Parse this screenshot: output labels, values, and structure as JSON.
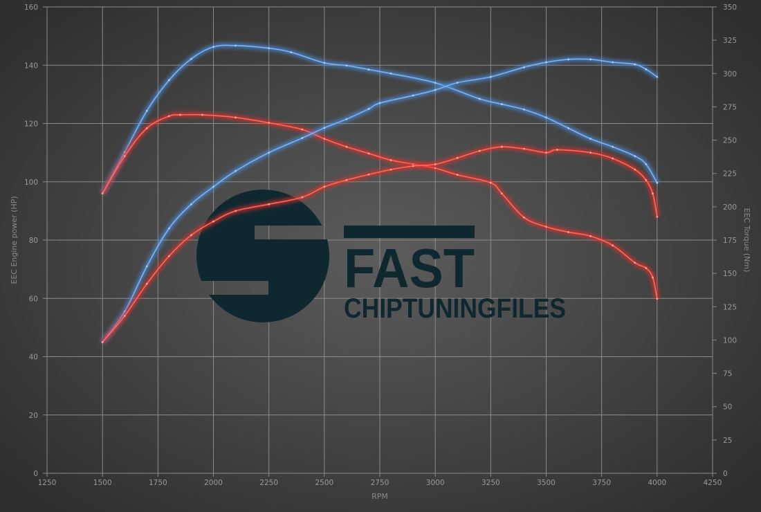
{
  "chart_data": {
    "type": "line",
    "xlabel": "RPM",
    "ylabel_left": "EEC Engine power (HP)",
    "ylabel_right": "EEC Torque (Nm)",
    "xlim": [
      1250,
      4250
    ],
    "xticks": [
      1250,
      1500,
      1750,
      2000,
      2250,
      2500,
      2750,
      3000,
      3250,
      3500,
      3750,
      4000,
      4250
    ],
    "ylim_left": [
      0,
      160
    ],
    "yticks_left": [
      0,
      20,
      40,
      60,
      80,
      100,
      120,
      140,
      160
    ],
    "ylim_right": [
      0,
      350
    ],
    "yticks_right": [
      0,
      25,
      50,
      75,
      100,
      125,
      150,
      175,
      200,
      225,
      250,
      275,
      300,
      325,
      350
    ],
    "grid": true,
    "watermark": {
      "brand_top": "FAST",
      "brand_bottom": "CHIPTUNINGFILES",
      "color": "#0f2830"
    },
    "series": [
      {
        "axis": "right",
        "quantity": "torque",
        "color": "#4a90e2",
        "x": [
          1500,
          1600,
          1700,
          1800,
          1900,
          2000,
          2100,
          2250,
          2350,
          2500,
          2600,
          2700,
          2800,
          3000,
          3200,
          3300,
          3400,
          3500,
          3600,
          3700,
          3800,
          3900,
          3950,
          4000
        ],
        "y": [
          210,
          241,
          272,
          295,
          311,
          320,
          321,
          319,
          316,
          308,
          306,
          303,
          300,
          293,
          281,
          277,
          273,
          267,
          259,
          251,
          245,
          238,
          232,
          218
        ]
      },
      {
        "axis": "right",
        "quantity": "torque",
        "color": "#e8302a",
        "x": [
          1500,
          1600,
          1700,
          1800,
          1850,
          1950,
          2100,
          2250,
          2400,
          2500,
          2600,
          2700,
          2800,
          2900,
          3000,
          3100,
          3250,
          3300,
          3400,
          3500,
          3600,
          3700,
          3800,
          3900,
          3950,
          3980,
          4000
        ],
        "y": [
          210,
          238,
          259,
          268,
          269,
          269,
          267,
          263,
          258,
          251,
          245,
          240,
          235,
          232,
          229,
          224,
          218,
          210,
          192,
          185,
          181,
          178,
          171,
          158,
          154,
          147,
          131
        ]
      },
      {
        "axis": "left",
        "quantity": "power",
        "color": "#4a90e2",
        "x": [
          1500,
          1600,
          1700,
          1800,
          1900,
          2000,
          2100,
          2250,
          2400,
          2500,
          2600,
          2700,
          2750,
          2900,
          3000,
          3100,
          3250,
          3400,
          3500,
          3600,
          3700,
          3800,
          3900,
          3950,
          4000
        ],
        "y": [
          45,
          55.5,
          71,
          84,
          92.3,
          98.3,
          103.7,
          110,
          115,
          118.5,
          121.5,
          125,
          127,
          129.6,
          131.5,
          134,
          136,
          139.3,
          141,
          142,
          142,
          141,
          140.3,
          138.6,
          136
        ]
      },
      {
        "axis": "left",
        "quantity": "power",
        "color": "#e8302a",
        "x": [
          1500,
          1600,
          1700,
          1800,
          1900,
          2000,
          2100,
          2250,
          2400,
          2500,
          2600,
          2700,
          2800,
          2900,
          3000,
          3100,
          3200,
          3300,
          3400,
          3500,
          3550,
          3700,
          3800,
          3900,
          3950,
          3980,
          4000
        ],
        "y": [
          45,
          54,
          65,
          74.5,
          81.7,
          86.4,
          90,
          92.3,
          94.7,
          98.3,
          100.6,
          102.5,
          104.2,
          105.4,
          106,
          108.2,
          110.6,
          112,
          111.3,
          110,
          111,
          110,
          108,
          104.2,
          100.6,
          96,
          88
        ]
      }
    ]
  }
}
